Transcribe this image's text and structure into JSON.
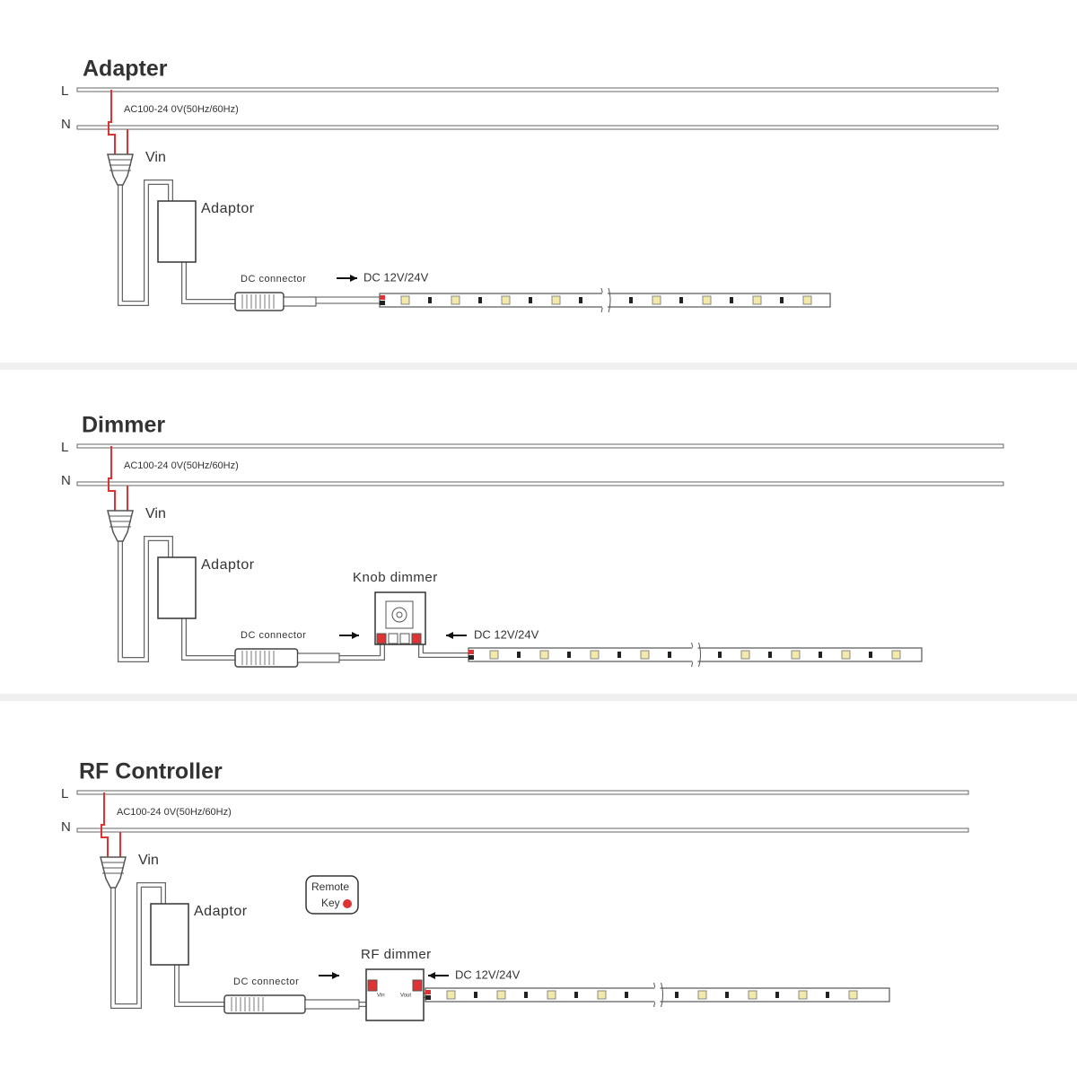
{
  "sections": [
    {
      "title": "Adapter",
      "line_l": "L",
      "line_n": "N",
      "supply": "AC100-24 0V(50Hz/60Hz)",
      "vin": "Vin",
      "adaptor": "Adaptor",
      "dc_connector": "DC connector",
      "dc_output": "DC 12V/24V"
    },
    {
      "title": "Dimmer",
      "line_l": "L",
      "line_n": "N",
      "supply": "AC100-24 0V(50Hz/60Hz)",
      "vin": "Vin",
      "adaptor": "Adaptor",
      "dc_connector": "DC  connector",
      "dimmer": "Knob  dimmer",
      "dc_output": "DC 12V/24V"
    },
    {
      "title": "RF Controller",
      "line_l": "L",
      "line_n": "N",
      "supply": "AC100-24 0V(50Hz/60Hz)",
      "vin": "Vin",
      "adaptor": "Adaptor",
      "dc_connector": "DC  connector",
      "remote": {
        "line1": "Remote",
        "line2": "Key"
      },
      "dimmer": "RF  dimmer",
      "dimmer_in": "Vin",
      "dimmer_out": "Vout",
      "dc_output": "DC 12V/24V"
    }
  ]
}
